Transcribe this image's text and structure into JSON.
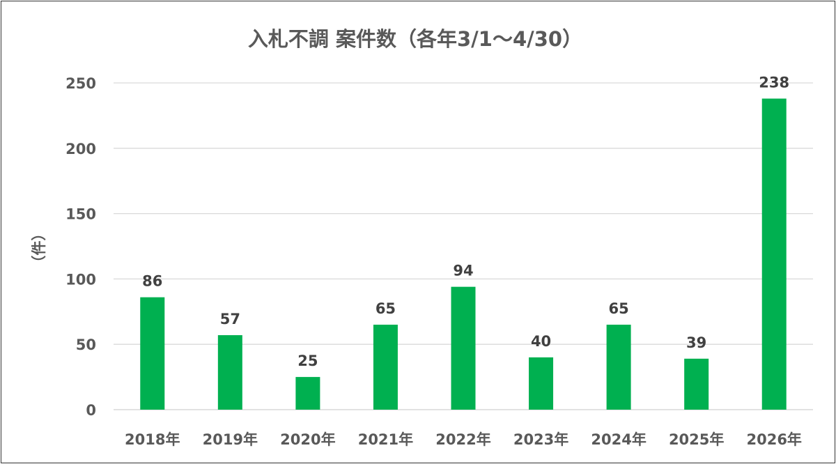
{
  "chart_data": {
    "type": "bar",
    "title": "入札不調 案件数（各年3/1～4/30）",
    "ylabel": "（件）",
    "xlabel": "",
    "categories": [
      "2018年",
      "2019年",
      "2020年",
      "2021年",
      "2022年",
      "2023年",
      "2024年",
      "2025年",
      "2026年"
    ],
    "values": [
      86,
      57,
      25,
      65,
      94,
      40,
      65,
      39,
      238
    ],
    "ylim": [
      0,
      250
    ],
    "yticks": [
      0,
      50,
      100,
      150,
      200,
      250
    ],
    "grid": true,
    "bar_color": "#00b050",
    "data_labels": true
  }
}
